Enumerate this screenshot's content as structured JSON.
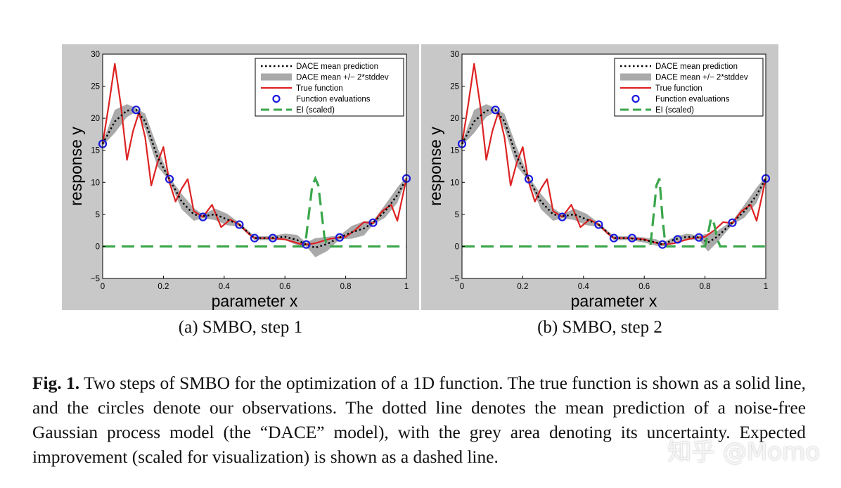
{
  "figure": {
    "legend": [
      {
        "label": "DACE mean prediction",
        "style": "dotted",
        "color": "#000000"
      },
      {
        "label": "DACE mean +/− 2*stddev",
        "style": "band",
        "color": "#aaaaaa"
      },
      {
        "label": "True function",
        "style": "line",
        "color": "#dd2222"
      },
      {
        "label": "Function evaluations",
        "style": "marker",
        "color": "#1a1adf"
      },
      {
        "label": "EI (scaled)",
        "style": "dashed",
        "color": "#3aa64a"
      }
    ],
    "panel_bg": "#c8c8c8"
  },
  "chart_data": [
    {
      "type": "line",
      "subcaption": "(a)  SMBO, step 1",
      "xlabel": "parameter x",
      "ylabel": "response y",
      "xlim": [
        0,
        1
      ],
      "ylim": [
        -5,
        30
      ],
      "xticks": [
        "0",
        "0.2",
        "0.4",
        "0.6",
        "0.8",
        "1"
      ],
      "yticks": [
        "−5",
        "0",
        "5",
        "10",
        "15",
        "20",
        "25",
        "30"
      ],
      "grid": false,
      "legend_position": "top-right",
      "series": [
        {
          "name": "True function",
          "x": [
            0,
            0.02,
            0.04,
            0.06,
            0.08,
            0.1,
            0.12,
            0.14,
            0.16,
            0.18,
            0.2,
            0.22,
            0.24,
            0.26,
            0.28,
            0.3,
            0.33,
            0.36,
            0.39,
            0.42,
            0.45,
            0.48,
            0.5,
            0.55,
            0.6,
            0.65,
            0.67,
            0.7,
            0.75,
            0.78,
            0.8,
            0.83,
            0.86,
            0.89,
            0.92,
            0.95,
            0.97,
            1.0
          ],
          "y": [
            16,
            22,
            28.5,
            22,
            13.5,
            18,
            21,
            17,
            9.5,
            13,
            15.5,
            10,
            7,
            9,
            10.5,
            5.5,
            4.6,
            6.5,
            3,
            4.2,
            3.4,
            2,
            1.3,
            1.3,
            1.1,
            0.4,
            0.3,
            0.5,
            1.2,
            1.4,
            1.5,
            2.5,
            3.8,
            3.6,
            5.5,
            6.5,
            4,
            10.6
          ]
        },
        {
          "name": "DACE mean prediction",
          "x": [
            0,
            0.04,
            0.08,
            0.11,
            0.14,
            0.18,
            0.22,
            0.26,
            0.3,
            0.33,
            0.37,
            0.41,
            0.45,
            0.5,
            0.55,
            0.6,
            0.64,
            0.67,
            0.7,
            0.74,
            0.78,
            0.82,
            0.86,
            0.89,
            0.93,
            0.97,
            1.0
          ],
          "y": [
            16,
            19.5,
            21.2,
            21.3,
            19.5,
            14,
            10.5,
            7,
            5,
            4.7,
            5,
            4.2,
            3.4,
            1.3,
            1.3,
            1.5,
            1.0,
            0.3,
            -0.2,
            0.4,
            1.4,
            2.2,
            2.8,
            3.7,
            5.5,
            8.0,
            10.6
          ]
        },
        {
          "name": "Function evaluations",
          "x": [
            0.0,
            0.11,
            0.22,
            0.33,
            0.45,
            0.5,
            0.56,
            0.67,
            0.78,
            0.89,
            1.0
          ],
          "y": [
            16,
            21.3,
            10.5,
            4.6,
            3.4,
            1.3,
            1.3,
            0.3,
            1.4,
            3.7,
            10.6
          ]
        },
        {
          "name": "EI (scaled)",
          "x": [
            0,
            0.66,
            0.67,
            0.68,
            0.69,
            0.7,
            0.71,
            0.72,
            0.73,
            0.74,
            1.0
          ],
          "y": [
            0,
            0,
            1.5,
            5.5,
            9.5,
            10.6,
            9.5,
            5.5,
            1.5,
            0,
            0
          ]
        }
      ],
      "band_halfwidth": [
        0.3,
        1.8,
        1.0,
        0.3,
        1.2,
        1.5,
        0.3,
        1.2,
        1.0,
        0.3,
        0.9,
        0.9,
        0.3,
        0.3,
        0.3,
        0.5,
        0.8,
        0.3,
        1.5,
        1.1,
        0.3,
        1.0,
        1.1,
        0.3,
        1.0,
        1.2,
        0.3
      ]
    },
    {
      "type": "line",
      "subcaption": "(b)  SMBO, step 2",
      "xlabel": "parameter x",
      "ylabel": "response y",
      "xlim": [
        0,
        1
      ],
      "ylim": [
        -5,
        30
      ],
      "xticks": [
        "0",
        "0.2",
        "0.4",
        "0.6",
        "0.8",
        "1"
      ],
      "yticks": [
        "−5",
        "0",
        "5",
        "10",
        "15",
        "20",
        "25",
        "30"
      ],
      "grid": false,
      "legend_position": "top-right",
      "series": [
        {
          "name": "True function",
          "x": [
            0,
            0.02,
            0.04,
            0.06,
            0.08,
            0.1,
            0.12,
            0.14,
            0.16,
            0.18,
            0.2,
            0.22,
            0.24,
            0.26,
            0.28,
            0.3,
            0.33,
            0.36,
            0.39,
            0.42,
            0.45,
            0.48,
            0.5,
            0.55,
            0.6,
            0.65,
            0.67,
            0.7,
            0.75,
            0.78,
            0.8,
            0.83,
            0.86,
            0.89,
            0.92,
            0.95,
            0.97,
            1.0
          ],
          "y": [
            16,
            22,
            28.5,
            22,
            13.5,
            18,
            21,
            17,
            9.5,
            13,
            15.5,
            10,
            7,
            9,
            10.5,
            5.5,
            4.6,
            6.5,
            3,
            4.2,
            3.4,
            2,
            1.3,
            1.3,
            1.1,
            0.4,
            0.3,
            0.5,
            1.2,
            1.4,
            1.5,
            2.5,
            3.8,
            3.6,
            5.5,
            6.5,
            4,
            10.6
          ]
        },
        {
          "name": "DACE mean prediction",
          "x": [
            0,
            0.04,
            0.08,
            0.11,
            0.14,
            0.18,
            0.22,
            0.26,
            0.3,
            0.33,
            0.37,
            0.41,
            0.45,
            0.5,
            0.55,
            0.6,
            0.64,
            0.66,
            0.7,
            0.74,
            0.78,
            0.81,
            0.84,
            0.89,
            0.93,
            0.97,
            1.0
          ],
          "y": [
            16,
            19.5,
            21.2,
            21.3,
            19.5,
            14,
            10.5,
            7,
            5,
            4.7,
            5,
            4.2,
            3.4,
            1.3,
            1.3,
            1.0,
            0.6,
            0.3,
            1.1,
            1.5,
            1.4,
            0.6,
            1.5,
            3.7,
            5.5,
            8.0,
            10.6
          ]
        },
        {
          "name": "Function evaluations",
          "x": [
            0.0,
            0.11,
            0.22,
            0.33,
            0.45,
            0.5,
            0.56,
            0.66,
            0.71,
            0.78,
            0.89,
            1.0
          ],
          "y": [
            16,
            21.3,
            10.5,
            4.6,
            3.4,
            1.3,
            1.3,
            0.3,
            1.1,
            1.4,
            3.7,
            10.6
          ]
        },
        {
          "name": "EI (scaled)",
          "x": [
            0,
            0.62,
            0.63,
            0.64,
            0.65,
            0.66,
            0.67,
            0.8,
            0.81,
            0.82,
            0.83,
            0.84,
            0.85,
            1.0
          ],
          "y": [
            0,
            0,
            4.5,
            9.5,
            10.6,
            4.5,
            0,
            0,
            2.0,
            4.4,
            3.5,
            1.2,
            0,
            0
          ]
        }
      ],
      "band_halfwidth": [
        0.3,
        1.8,
        1.0,
        0.3,
        1.2,
        1.5,
        0.3,
        1.2,
        1.0,
        0.3,
        0.9,
        0.9,
        0.3,
        0.3,
        0.3,
        0.4,
        0.5,
        0.3,
        0.4,
        0.5,
        0.3,
        1.4,
        0.9,
        0.3,
        1.0,
        1.2,
        0.3
      ]
    }
  ],
  "caption": {
    "label": "Fig. 1.",
    "text": " Two steps of SMBO for the optimization of a 1D function. The true function is shown as a solid line, and the circles denote our observations. The dotted line denotes the mean prediction of a noise-free Gaussian process model (the “DACE” model), with the grey area denoting its uncertainty. Expected improvement (scaled for visualization) is shown as a dashed line."
  },
  "watermark": "知乎 @Momo"
}
